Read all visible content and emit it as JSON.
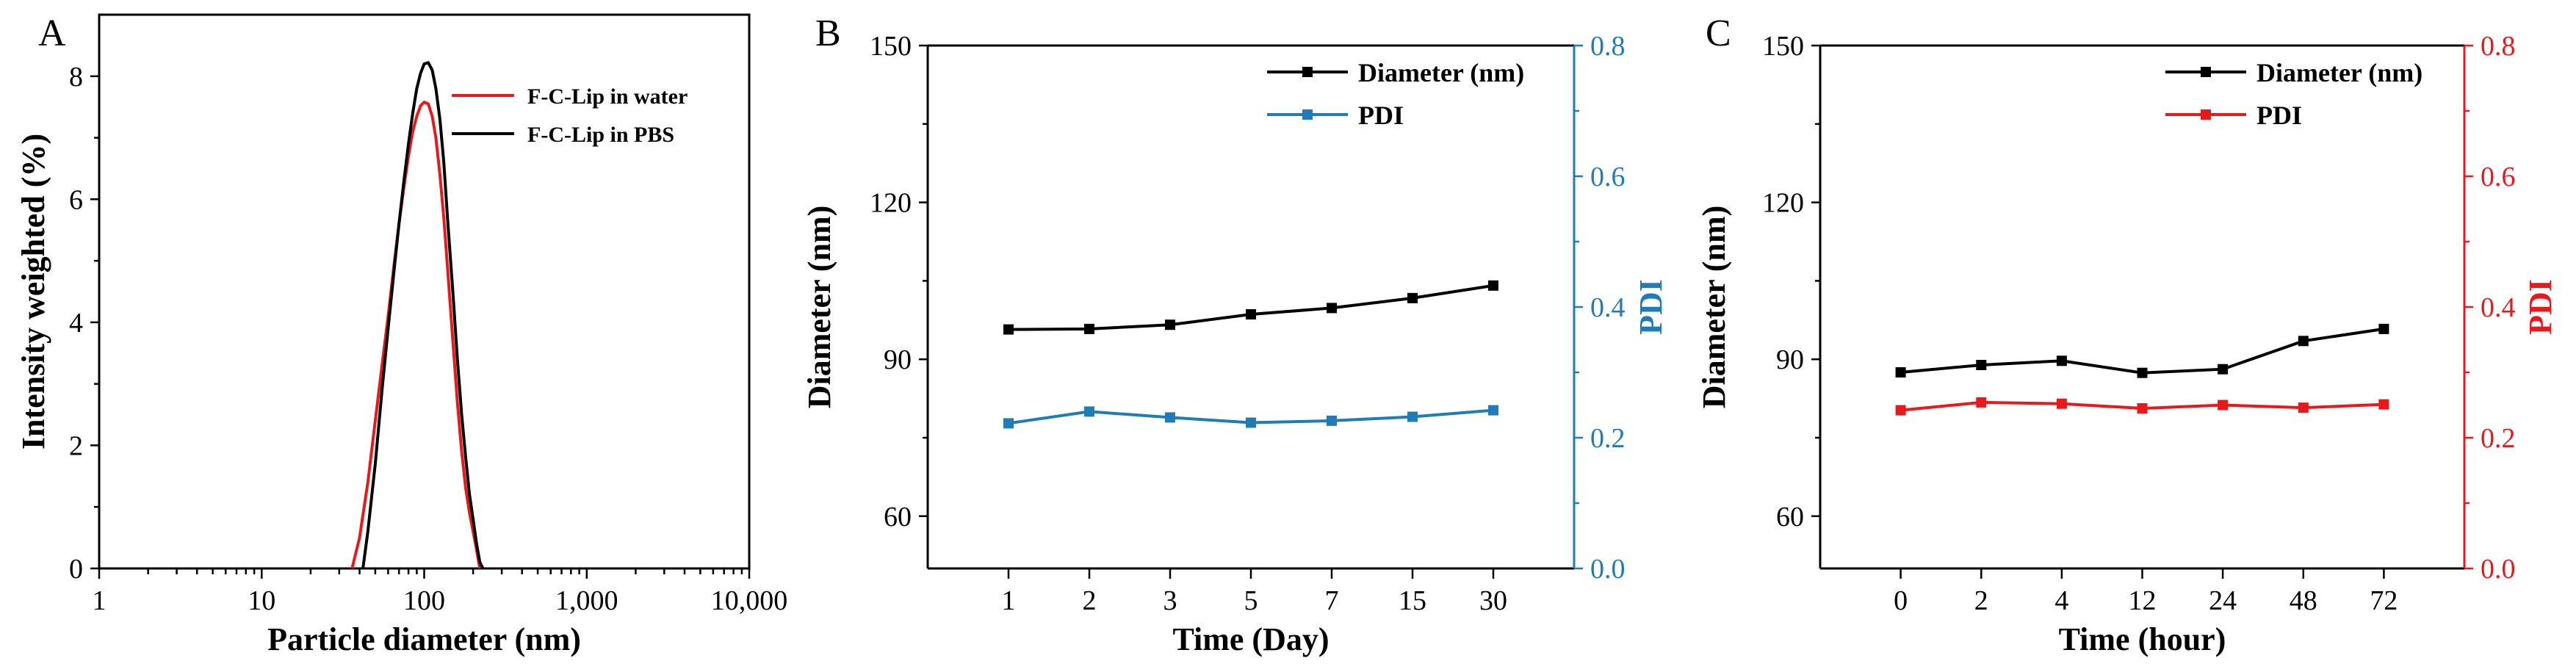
{
  "chart_data": [
    {
      "panel": "A",
      "type": "line",
      "xlabel": "Particle diameter (nm)",
      "ylabel": "Intensity weighted (%)",
      "xscale": "log",
      "xlim": [
        1,
        10000
      ],
      "ylim": [
        0,
        9
      ],
      "xticks": [
        1,
        10,
        100,
        1000,
        10000
      ],
      "xtick_labels": [
        "1",
        "10",
        "100",
        "1,000",
        "10,000"
      ],
      "yticks": [
        0,
        2,
        4,
        6,
        8
      ],
      "ytick_labels": [
        "0",
        "2",
        "4",
        "6",
        "8"
      ],
      "legend_position": "top-right",
      "series": [
        {
          "name": "F-C-Lip in water",
          "color": "#e8191b",
          "x": [
            36,
            40,
            45,
            50,
            55,
            60,
            65,
            70,
            75,
            80,
            85,
            90,
            95,
            100,
            106,
            112,
            118,
            125,
            132,
            140,
            150,
            160,
            170,
            180,
            190,
            200,
            210,
            220
          ],
          "y": [
            0,
            0.5,
            1.4,
            2.4,
            3.3,
            4.1,
            4.9,
            5.6,
            6.2,
            6.7,
            7.1,
            7.35,
            7.52,
            7.58,
            7.55,
            7.35,
            7.0,
            6.4,
            5.7,
            4.8,
            3.7,
            2.7,
            1.9,
            1.3,
            0.9,
            0.6,
            0.3,
            0
          ]
        },
        {
          "name": "F-C-Lip in PBS",
          "color": "#000000",
          "x": [
            42,
            45,
            50,
            55,
            60,
            65,
            70,
            75,
            80,
            85,
            90,
            95,
            100,
            106,
            112,
            118,
            125,
            132,
            140,
            150,
            160,
            170,
            180,
            190,
            200,
            210,
            220,
            230
          ],
          "y": [
            0,
            0.6,
            1.7,
            2.9,
            3.9,
            4.8,
            5.6,
            6.3,
            6.9,
            7.4,
            7.8,
            8.05,
            8.2,
            8.22,
            8.1,
            7.8,
            7.3,
            6.6,
            5.6,
            4.5,
            3.4,
            2.5,
            1.8,
            1.2,
            0.8,
            0.4,
            0.1,
            0
          ]
        }
      ]
    },
    {
      "panel": "B",
      "type": "line",
      "xlabel": "Time (Day)",
      "ylabel": "Diameter (nm)",
      "y2label": "PDI",
      "y2color": "#1f7cb6",
      "categories": [
        "1",
        "2",
        "3",
        "5",
        "7",
        "15",
        "30"
      ],
      "ylim": [
        50,
        150
      ],
      "y2lim": [
        0,
        0.8
      ],
      "yticks": [
        60,
        90,
        120,
        150
      ],
      "ytick_labels": [
        "60",
        "90",
        "120",
        "150"
      ],
      "y2ticks": [
        0,
        0.2,
        0.4,
        0.6,
        0.8
      ],
      "y2tick_labels": [
        "0.0",
        "0.2",
        "0.4",
        "0.6",
        "0.8"
      ],
      "legend_position": "top-right",
      "series": [
        {
          "name": "Diameter (nm)",
          "color": "#000000",
          "axis": "left",
          "values": [
            95.7,
            95.8,
            96.6,
            98.6,
            99.8,
            101.7,
            104.1
          ]
        },
        {
          "name": "PDI",
          "color": "#1f7cb6",
          "axis": "right",
          "values": [
            0.222,
            0.24,
            0.231,
            0.223,
            0.226,
            0.232,
            0.242
          ]
        }
      ]
    },
    {
      "panel": "C",
      "type": "line",
      "xlabel": "Time (hour)",
      "ylabel": "Diameter (nm)",
      "y2label": "PDI",
      "y2color": "#e8191b",
      "categories": [
        "0",
        "2",
        "4",
        "12",
        "24",
        "48",
        "72"
      ],
      "ylim": [
        50,
        150
      ],
      "y2lim": [
        0,
        0.8
      ],
      "yticks": [
        60,
        90,
        120,
        150
      ],
      "ytick_labels": [
        "60",
        "90",
        "120",
        "150"
      ],
      "y2ticks": [
        0,
        0.2,
        0.4,
        0.6,
        0.8
      ],
      "y2tick_labels": [
        "0.0",
        "0.2",
        "0.4",
        "0.6",
        "0.8"
      ],
      "legend_position": "top-right",
      "series": [
        {
          "name": "Diameter (nm)",
          "color": "#000000",
          "axis": "left",
          "values": [
            87.5,
            88.9,
            89.7,
            87.4,
            88.1,
            93.5,
            95.8
          ]
        },
        {
          "name": "PDI",
          "color": "#e8191b",
          "axis": "right",
          "values": [
            0.242,
            0.254,
            0.252,
            0.245,
            0.25,
            0.246,
            0.251
          ]
        }
      ]
    }
  ]
}
